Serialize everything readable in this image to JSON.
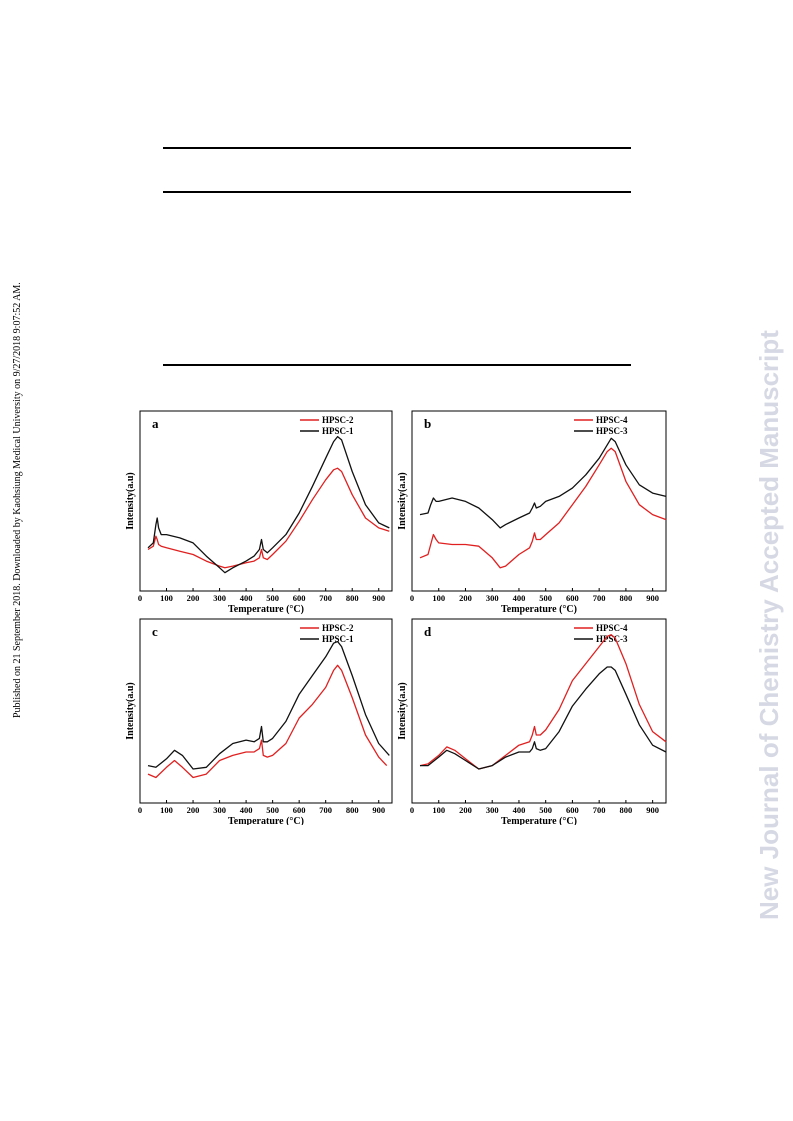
{
  "side_note": "Published on 21 September 2018. Downloaded by Kaohsiung Medical University on 9/27/2018 9:07:52 AM.",
  "watermark": "New Journal of Chemistry Accepted Manuscript",
  "colors": {
    "red": "#e02020",
    "black": "#111111"
  },
  "chart_data": [
    {
      "panel": "a",
      "type": "line",
      "xlabel": "Temperature (°C)",
      "ylabel": "Intensity(a.u)",
      "xlim": [
        0,
        950
      ],
      "ylim": [
        0,
        100
      ],
      "xticks": [
        0,
        100,
        200,
        300,
        400,
        500,
        600,
        700,
        800,
        900
      ],
      "legend_position": "top-right",
      "series": [
        {
          "name": "HPSC-2",
          "color": "#e02020",
          "x": [
            30,
            50,
            60,
            65,
            70,
            80,
            100,
            150,
            200,
            250,
            300,
            320,
            350,
            400,
            430,
            450,
            458,
            465,
            480,
            500,
            550,
            600,
            650,
            700,
            730,
            745,
            760,
            800,
            850,
            900,
            940
          ],
          "y": [
            25,
            27,
            33,
            31,
            28,
            27,
            26,
            24,
            22,
            18,
            15,
            14,
            15,
            17,
            18,
            20,
            25,
            20,
            19,
            22,
            30,
            42,
            55,
            67,
            73,
            74,
            72,
            58,
            44,
            38,
            36
          ]
        },
        {
          "name": "HPSC-1",
          "color": "#111111",
          "x": [
            30,
            50,
            60,
            65,
            70,
            80,
            100,
            150,
            200,
            250,
            300,
            320,
            350,
            400,
            430,
            450,
            458,
            465,
            480,
            500,
            550,
            600,
            650,
            700,
            730,
            745,
            760,
            800,
            850,
            900,
            940
          ],
          "y": [
            26,
            29,
            40,
            44,
            38,
            34,
            34,
            32,
            29,
            21,
            14,
            11,
            14,
            18,
            21,
            25,
            31,
            25,
            23,
            26,
            34,
            47,
            63,
            80,
            90,
            93,
            91,
            72,
            52,
            41,
            38
          ]
        }
      ]
    },
    {
      "panel": "b",
      "type": "line",
      "xlabel": "Temperature (°C)",
      "ylabel": "Intensity(a.u)",
      "xlim": [
        0,
        950
      ],
      "ylim": [
        0,
        100
      ],
      "xticks": [
        0,
        100,
        200,
        300,
        400,
        500,
        600,
        700,
        800,
        900
      ],
      "legend_position": "top-right",
      "series": [
        {
          "name": "HPSC-4",
          "color": "#e02020",
          "x": [
            30,
            60,
            70,
            80,
            90,
            100,
            150,
            200,
            250,
            300,
            330,
            350,
            400,
            440,
            450,
            458,
            465,
            480,
            500,
            550,
            600,
            650,
            700,
            730,
            745,
            760,
            800,
            850,
            900,
            950
          ],
          "y": [
            20,
            22,
            28,
            34,
            31,
            29,
            28,
            28,
            27,
            20,
            14,
            15,
            22,
            26,
            30,
            35,
            31,
            31,
            34,
            41,
            52,
            63,
            76,
            84,
            86,
            84,
            66,
            52,
            46,
            43
          ]
        },
        {
          "name": "HPSC-3",
          "color": "#111111",
          "x": [
            30,
            60,
            70,
            80,
            90,
            100,
            150,
            200,
            250,
            300,
            330,
            350,
            400,
            440,
            450,
            458,
            465,
            480,
            500,
            550,
            600,
            650,
            700,
            730,
            745,
            760,
            800,
            850,
            900,
            950
          ],
          "y": [
            46,
            47,
            52,
            56,
            54,
            54,
            56,
            54,
            50,
            43,
            38,
            40,
            44,
            47,
            50,
            53,
            50,
            51,
            54,
            57,
            62,
            70,
            80,
            88,
            92,
            90,
            76,
            64,
            59,
            57
          ]
        }
      ]
    },
    {
      "panel": "c",
      "type": "line",
      "xlabel": "Temperature (°C)",
      "ylabel": "Intensity(a.u)",
      "xlim": [
        0,
        950
      ],
      "ylim": [
        0,
        100
      ],
      "xticks": [
        0,
        100,
        200,
        300,
        400,
        500,
        600,
        700,
        800,
        900
      ],
      "legend_position": "top-right",
      "series": [
        {
          "name": "HPSC-2",
          "color": "#e02020",
          "x": [
            30,
            60,
            100,
            130,
            160,
            200,
            250,
            300,
            350,
            400,
            430,
            450,
            458,
            465,
            480,
            500,
            550,
            600,
            650,
            700,
            730,
            745,
            760,
            800,
            850,
            900,
            930
          ],
          "y": [
            17,
            15,
            21,
            25,
            21,
            15,
            17,
            25,
            28,
            30,
            30,
            32,
            37,
            28,
            27,
            28,
            35,
            50,
            58,
            68,
            78,
            81,
            78,
            62,
            40,
            27,
            22
          ]
        },
        {
          "name": "HPSC-1",
          "color": "#111111",
          "x": [
            30,
            60,
            100,
            130,
            160,
            200,
            250,
            300,
            350,
            400,
            430,
            450,
            458,
            465,
            480,
            500,
            550,
            600,
            650,
            700,
            730,
            745,
            760,
            800,
            850,
            900,
            940
          ],
          "y": [
            22,
            21,
            26,
            31,
            28,
            20,
            21,
            29,
            35,
            37,
            36,
            38,
            45,
            36,
            36,
            38,
            48,
            64,
            75,
            86,
            94,
            95,
            92,
            75,
            52,
            35,
            28
          ]
        }
      ]
    },
    {
      "panel": "d",
      "type": "line",
      "xlabel": "Temperature (°C)",
      "ylabel": "Intensity(a.u)",
      "xlim": [
        0,
        950
      ],
      "ylim": [
        0,
        100
      ],
      "xticks": [
        0,
        100,
        200,
        300,
        400,
        500,
        600,
        700,
        800,
        900
      ],
      "legend_position": "top-right",
      "series": [
        {
          "name": "HPSC-4",
          "color": "#e02020",
          "x": [
            30,
            60,
            100,
            130,
            160,
            200,
            250,
            300,
            350,
            400,
            440,
            450,
            458,
            465,
            480,
            500,
            550,
            600,
            650,
            700,
            730,
            745,
            760,
            800,
            850,
            900,
            950
          ],
          "y": [
            22,
            23,
            28,
            33,
            31,
            26,
            20,
            22,
            28,
            34,
            36,
            40,
            45,
            40,
            40,
            43,
            55,
            72,
            82,
            92,
            98,
            99,
            97,
            82,
            58,
            42,
            36
          ]
        },
        {
          "name": "HPSC-3",
          "color": "#111111",
          "x": [
            30,
            60,
            100,
            130,
            160,
            200,
            250,
            300,
            350,
            400,
            440,
            450,
            458,
            465,
            480,
            500,
            550,
            600,
            650,
            700,
            730,
            745,
            760,
            800,
            850,
            900,
            950
          ],
          "y": [
            22,
            22,
            27,
            31,
            29,
            25,
            20,
            22,
            27,
            30,
            30,
            32,
            36,
            32,
            31,
            32,
            42,
            57,
            67,
            76,
            80,
            80,
            78,
            64,
            46,
            34,
            30
          ]
        }
      ]
    }
  ]
}
